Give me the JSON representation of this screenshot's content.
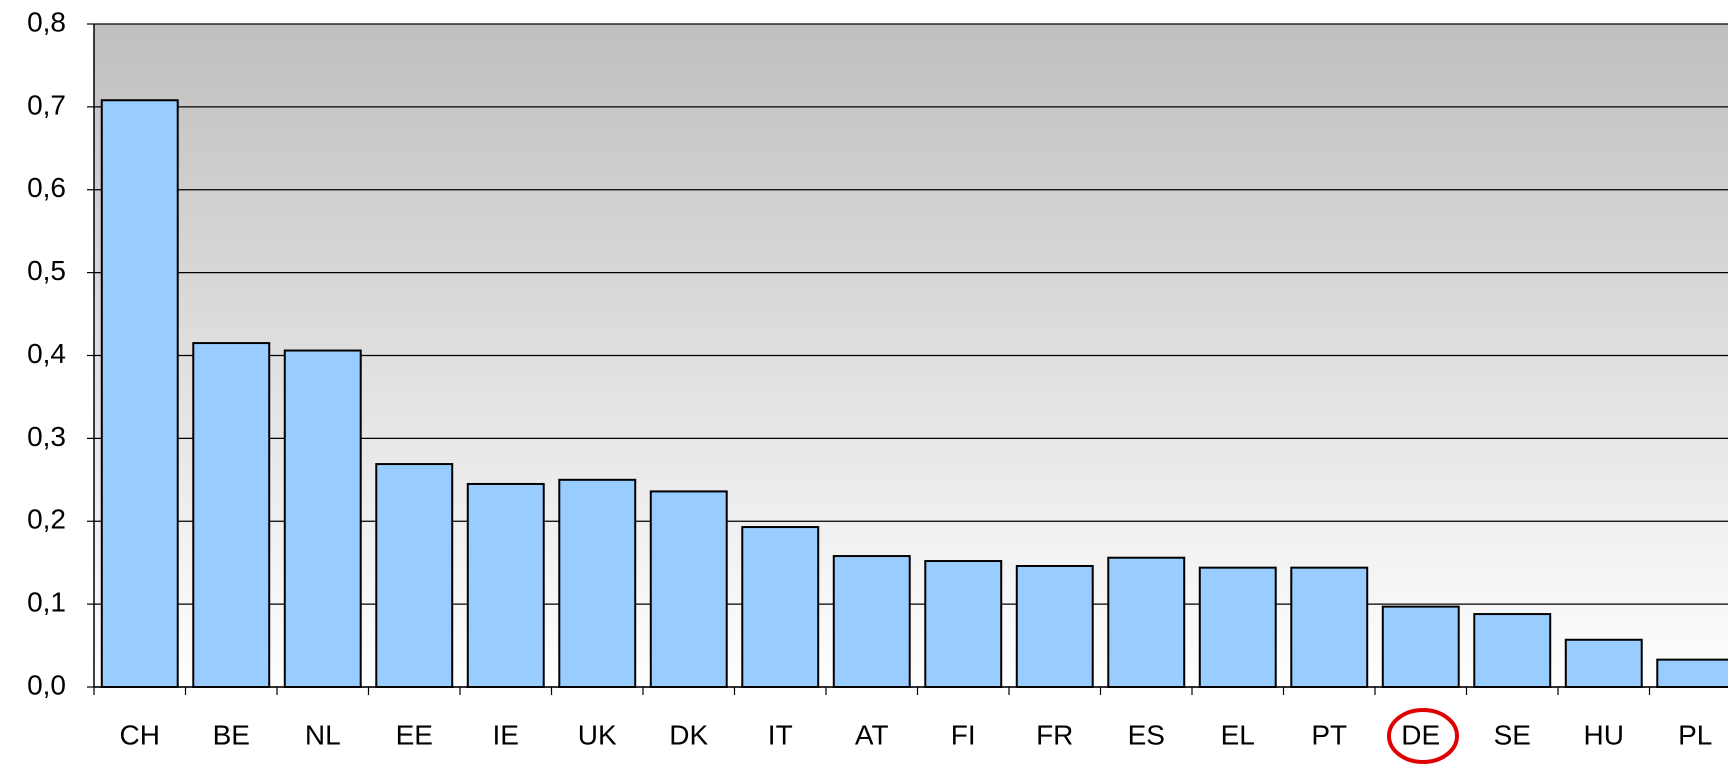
{
  "chart_data": {
    "type": "bar",
    "categories": [
      "CH",
      "BE",
      "NL",
      "EE",
      "IE",
      "UK",
      "DK",
      "IT",
      "AT",
      "FI",
      "FR",
      "ES",
      "EL",
      "PT",
      "DE",
      "SE",
      "HU",
      "PL"
    ],
    "values": [
      0.708,
      0.415,
      0.406,
      0.269,
      0.245,
      0.25,
      0.236,
      0.193,
      0.158,
      0.152,
      0.146,
      0.156,
      0.144,
      0.144,
      0.097,
      0.088,
      0.057,
      0.033
    ],
    "color": "#99ccff",
    "ylim": [
      0,
      0.8
    ],
    "yticks": [
      {
        "value": 0,
        "label": "0,0"
      },
      {
        "value": 0.1,
        "label": "0,1"
      },
      {
        "value": 0.2,
        "label": "0,2"
      },
      {
        "value": 0.3,
        "label": "0,3"
      },
      {
        "value": 0.4,
        "label": "0,4"
      },
      {
        "value": 0.5,
        "label": "0,5"
      },
      {
        "value": 0.6,
        "label": "0,6"
      },
      {
        "value": 0.7,
        "label": "0,7"
      },
      {
        "value": 0.8,
        "label": "0,8"
      }
    ],
    "grid": true
  }
}
